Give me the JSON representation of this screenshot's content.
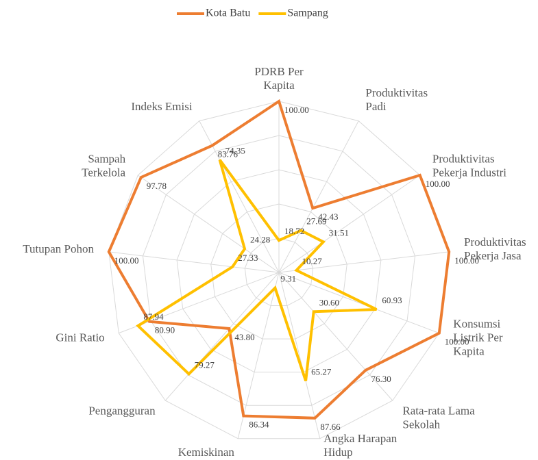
{
  "chart_data": {
    "type": "radar",
    "categories": [
      "PDRB Per\nKapita",
      "Produktivitas\nPadi",
      "Produktivitas\nPekerja Industri",
      "Produktivitas\nPekerja Jasa",
      "Konsumsi\nListrik Per\nKapita",
      "Rata-rata Lama\nSekolah",
      "Angka Harapan\nHidup",
      "Kemiskinan",
      "Pengangguran",
      "Gini Ratio",
      "Tutupan Pohon",
      "Sampah\nTerkelola",
      "Indeks Emisi"
    ],
    "series": [
      {
        "name": "Kota Batu",
        "color": "#ED7D31",
        "values": [
          100,
          42.43,
          100,
          100,
          100,
          76.3,
          87.66,
          86.34,
          43.8,
          80.9,
          100,
          97.78,
          83.76
        ],
        "value_labels": [
          "100.00",
          "42.43",
          "100.00",
          "100.00",
          "100.00",
          "76.30",
          "87.66",
          "86.34",
          "43.80",
          "80.90",
          "100.00",
          "97.78",
          "83.76"
        ]
      },
      {
        "name": "Sampang",
        "color": "#FFC000",
        "values": [
          18.72,
          27.69,
          31.51,
          10.27,
          60.93,
          30.6,
          65.27,
          9.31,
          79.27,
          87.94,
          27.33,
          24.28,
          74.35
        ],
        "value_labels": [
          "18.72",
          "27.69",
          "31.51",
          "10.27",
          "60.93",
          "30.60",
          "65.27",
          "9.31",
          "79.27",
          "87.94",
          "27.33",
          "24.28",
          "74.35"
        ]
      }
    ],
    "ylim": [
      0,
      100
    ],
    "yticks": [
      0,
      20,
      40,
      60,
      80,
      100
    ],
    "grid": true,
    "legend": "top"
  }
}
